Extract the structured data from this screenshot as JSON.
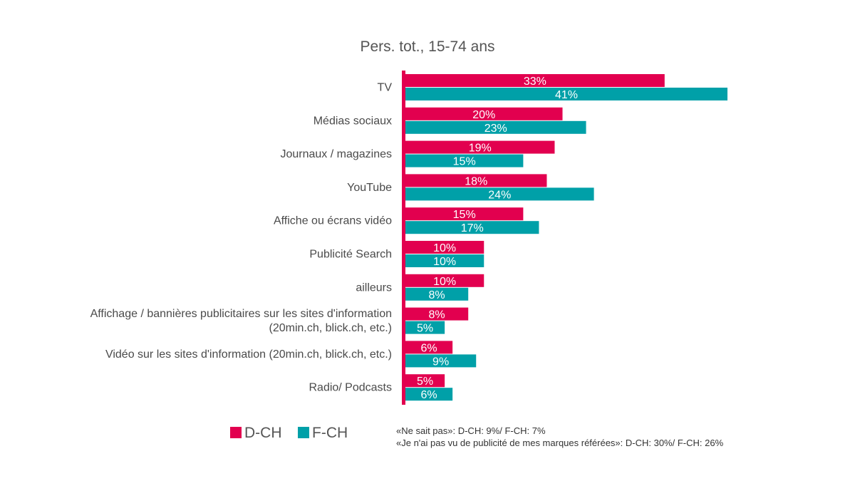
{
  "chart_data": {
    "type": "bar",
    "orientation": "horizontal",
    "title": "Pers. tot., 15-74 ans",
    "categories": [
      [
        "TV"
      ],
      [
        "Médias sociaux"
      ],
      [
        "Journaux / magazines"
      ],
      [
        "YouTube"
      ],
      [
        "Affiche ou écrans vidéo"
      ],
      [
        "Publicité Search"
      ],
      [
        "ailleurs"
      ],
      [
        "Affichage / bannières publicitaires sur les sites d'information",
        "(20min.ch, blick.ch, etc.)"
      ],
      [
        "Vidéo sur les sites d'information (20min.ch, blick.ch, etc.)"
      ],
      [
        "Radio/ Podcasts"
      ]
    ],
    "series": [
      {
        "name": "D-CH",
        "color": "#e2004f",
        "values": [
          33,
          20,
          19,
          18,
          15,
          10,
          10,
          8,
          6,
          5
        ]
      },
      {
        "name": "F-CH",
        "color": "#00a0a8",
        "values": [
          41,
          23,
          15,
          24,
          17,
          10,
          8,
          5,
          9,
          6
        ]
      }
    ],
    "value_suffix": "%",
    "xlim": [
      0,
      41
    ],
    "axis_color": "#e2004f",
    "grid": false,
    "legend_position": "bottom-left",
    "notes": [
      "«Ne sait pas»: D-CH: 9%/ F-CH: 7%",
      "«Je n'ai pas vu de publicité de mes marques référées»: D-CH: 30%/ F-CH: 26%"
    ]
  }
}
